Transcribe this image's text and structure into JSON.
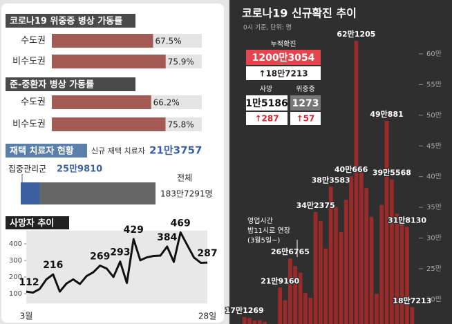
{
  "icu": {
    "title": "코로나19 위중증 병상 가동률",
    "categories": [
      "수도권",
      "비수도권"
    ],
    "values": [
      67.5,
      75.9
    ],
    "value_labels": [
      "67.5%",
      "75.9%"
    ],
    "xlim": [
      0,
      100
    ],
    "color": "#a35a55"
  },
  "semi": {
    "title": "준-중환자 병상 가동률",
    "categories": [
      "수도권",
      "비수도권"
    ],
    "values": [
      66.2,
      75.8
    ],
    "value_labels": [
      "66.2%",
      "75.8%"
    ],
    "xlim": [
      0,
      100
    ],
    "color": "#a35a55"
  },
  "home": {
    "title": "재택 치료자 현황",
    "new_label": "신규 재택 치료자",
    "new_value_label": "21만3757",
    "focus_label": "집중관리군",
    "focus_value": 259810,
    "focus_value_label": "25만9810",
    "total_label": "전체",
    "total_value": 1837291,
    "total_value_label": "183만7291명",
    "focus_color": "#3b5fa0",
    "total_color": "#666666"
  },
  "deaths": {
    "type": "line",
    "title": "사망자 추이",
    "categories": [
      "3월",
      null,
      null,
      null,
      null,
      null,
      null,
      null,
      null,
      null,
      null,
      null,
      null,
      null,
      null,
      null,
      null,
      null,
      null,
      null,
      null,
      null,
      null,
      null,
      null,
      null,
      null,
      "28일"
    ],
    "values": [
      112,
      106,
      128,
      186,
      216,
      112,
      161,
      186,
      158,
      206,
      229,
      269,
      251,
      200,
      293,
      164,
      429,
      301,
      319,
      327,
      329,
      384,
      291,
      469,
      393,
      318,
      286,
      287
    ],
    "value_labels": [
      "112",
      null,
      null,
      null,
      "216",
      null,
      null,
      null,
      null,
      null,
      null,
      "269",
      null,
      null,
      "293",
      null,
      "429",
      null,
      null,
      null,
      null,
      "384",
      null,
      "469",
      null,
      null,
      null,
      "287"
    ],
    "ylim": [
      40,
      480
    ],
    "yticks": [
      100,
      200,
      300,
      400
    ],
    "color": "#111111"
  },
  "stats": {
    "cumulative_label": "누적확진",
    "cumulative": "1200만3054",
    "cumulative_change": "↑18만7213",
    "deaths_label": "사망",
    "deaths": "1만5186",
    "deaths_change": "↑287",
    "severe_label": "위중증",
    "severe": "1273",
    "severe_change": "↑57"
  },
  "chart_data": {
    "type": "bar",
    "title": "코로나19 신규확진 추이",
    "subtitle": "0시 기준, 단위: 명",
    "values": [
      171269,
      170016,
      165890,
      166209,
      163565,
      139626,
      138993,
      219160,
      198803,
      266765,
      254327,
      243628,
      210716,
      202721,
      342375,
      327549,
      282987,
      383583,
      350190,
      309790,
      362338,
      400666,
      621205,
      407017,
      381454,
      334708,
      209169,
      353980,
      490881,
      395568,
      339514,
      335580,
      318130,
      187213
    ],
    "value_labels": [
      "17만1269",
      null,
      null,
      null,
      null,
      null,
      null,
      "21만9160",
      null,
      "26만6765",
      null,
      null,
      null,
      null,
      "34만2375",
      null,
      null,
      "38만3583",
      null,
      null,
      null,
      "40만666",
      "62만1205",
      null,
      null,
      null,
      null,
      null,
      "49만881",
      "39만5568",
      null,
      null,
      "31만8130",
      "18만7213"
    ],
    "ylim": [
      160000,
      650000
    ],
    "yticks": [
      {
        "value": 200000,
        "label": "20만"
      },
      {
        "value": 250000,
        "label": "25만"
      },
      {
        "value": 300000,
        "label": "30만"
      },
      {
        "value": 350000,
        "label": "35만"
      },
      {
        "value": 400000,
        "label": "40만"
      },
      {
        "value": 450000,
        "label": "45만"
      },
      {
        "value": 500000,
        "label": "50만"
      },
      {
        "value": 550000,
        "label": "55만"
      },
      {
        "value": 600000,
        "label": "60만"
      }
    ],
    "color": "#9b2a2a",
    "annotation": [
      "영업시간",
      "밤11시로 연장",
      "(3월5일~)"
    ]
  }
}
